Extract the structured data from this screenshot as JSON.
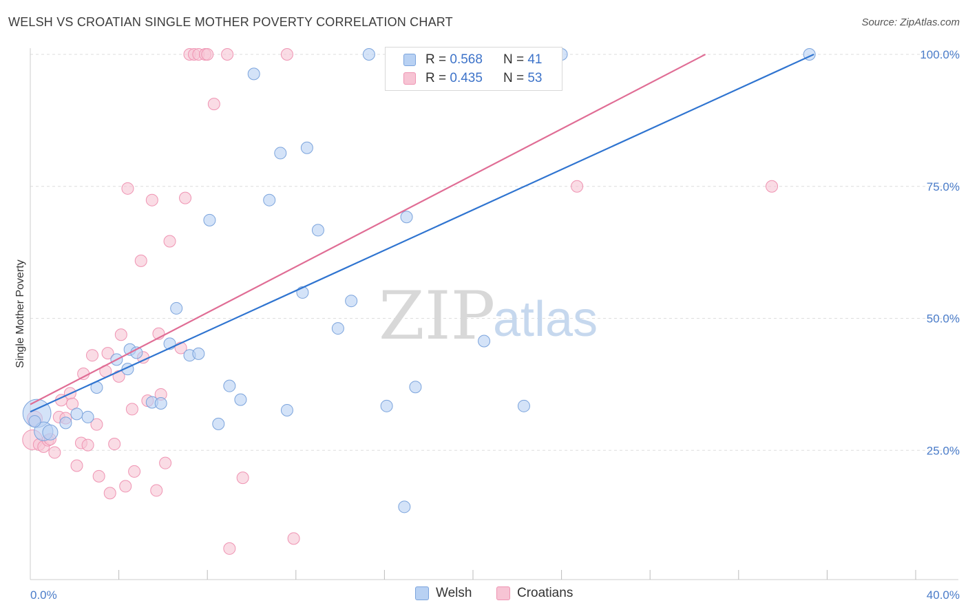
{
  "header": {
    "title": "WELSH VS CROATIAN SINGLE MOTHER POVERTY CORRELATION CHART",
    "source": "Source: ZipAtlas.com"
  },
  "watermark": {
    "zip": "ZIP",
    "atlas": "atlas"
  },
  "legend": {
    "rows": [
      {
        "r_label": "R =",
        "r_value": "0.568",
        "n_label": "N =",
        "n_value": "41"
      },
      {
        "r_label": "R =",
        "r_value": "0.435",
        "n_label": "N =",
        "n_value": "53"
      }
    ]
  },
  "bottom_legend": {
    "welsh": "Welsh",
    "croatians": "Croatians"
  },
  "colors": {
    "welsh_fill": "#b8d1f3",
    "welsh_stroke": "#7aa3dc",
    "welsh_line": "#2f74d0",
    "croatian_fill": "#f7c4d4",
    "croatian_stroke": "#ef93b2",
    "croatian_line": "#e06d95",
    "grid": "#dddddd",
    "tick_text": "#4a7cc9"
  },
  "chart_data": {
    "type": "scatter",
    "title": "WELSH VS CROATIAN SINGLE MOTHER POVERTY CORRELATION CHART",
    "xlabel": "",
    "ylabel": "Single Mother Poverty",
    "xlim": [
      0,
      40
    ],
    "ylim": [
      0,
      100
    ],
    "x_tick_labels": [
      "0.0%",
      "40.0%"
    ],
    "y_tick_labels": [
      "25.0%",
      "50.0%",
      "75.0%",
      "100.0%"
    ],
    "y_ticks": [
      25,
      50,
      75,
      100
    ],
    "grid": true,
    "legend_position": "top-center",
    "series": [
      {
        "name": "Welsh",
        "r": 0.568,
        "n": 41,
        "trend": {
          "x": [
            0.0,
            35.4
          ],
          "y": [
            32.3,
            100.0
          ]
        },
        "points": [
          [
            0.3,
            32.0,
            2.4
          ],
          [
            0.6,
            28.6,
            1.6
          ],
          [
            0.9,
            28.4,
            1.3
          ],
          [
            1.6,
            30.2,
            1
          ],
          [
            2.1,
            31.9,
            1
          ],
          [
            2.6,
            31.3,
            1
          ],
          [
            3.0,
            36.9,
            1
          ],
          [
            3.9,
            42.2,
            1
          ],
          [
            4.4,
            40.4,
            1
          ],
          [
            4.5,
            44.1,
            1
          ],
          [
            4.8,
            43.5,
            1
          ],
          [
            5.5,
            34.1,
            1
          ],
          [
            5.9,
            33.9,
            1
          ],
          [
            6.3,
            45.2,
            1
          ],
          [
            6.6,
            51.9,
            1
          ],
          [
            7.2,
            43.0,
            1
          ],
          [
            7.6,
            43.3,
            1
          ],
          [
            8.1,
            68.6,
            1
          ],
          [
            8.5,
            30.0,
            1
          ],
          [
            9.0,
            37.2,
            1
          ],
          [
            9.5,
            34.6,
            1
          ],
          [
            10.1,
            96.3,
            1
          ],
          [
            10.8,
            72.4,
            1
          ],
          [
            11.3,
            81.3,
            1
          ],
          [
            11.6,
            32.6,
            1
          ],
          [
            12.3,
            54.9,
            1
          ],
          [
            12.5,
            82.3,
            1
          ],
          [
            13.0,
            66.7,
            1
          ],
          [
            13.9,
            48.1,
            1
          ],
          [
            14.5,
            53.3,
            1
          ],
          [
            15.3,
            100.0,
            1
          ],
          [
            16.1,
            33.4,
            1
          ],
          [
            17.0,
            69.2,
            1
          ],
          [
            17.4,
            37.0,
            1
          ],
          [
            16.9,
            14.3,
            1
          ],
          [
            19.4,
            100.0,
            1
          ],
          [
            20.5,
            45.7,
            1
          ],
          [
            22.3,
            33.4,
            1
          ],
          [
            24.0,
            100.0,
            1
          ],
          [
            35.2,
            100.0,
            1
          ],
          [
            0.2,
            30.5,
            1
          ]
        ]
      },
      {
        "name": "Croatians",
        "r": 0.435,
        "n": 53,
        "trend": {
          "x": [
            0.0,
            30.5
          ],
          "y": [
            33.7,
            100.0
          ]
        },
        "points": [
          [
            0.1,
            27.0,
            1.7
          ],
          [
            0.2,
            31.0,
            1.3
          ],
          [
            0.4,
            26.1,
            1
          ],
          [
            0.6,
            25.7,
            1
          ],
          [
            0.8,
            26.9,
            1
          ],
          [
            1.1,
            24.6,
            1
          ],
          [
            1.3,
            31.3,
            1
          ],
          [
            1.4,
            34.5,
            1
          ],
          [
            1.6,
            31.1,
            1
          ],
          [
            1.8,
            35.8,
            1
          ],
          [
            1.9,
            33.8,
            1
          ],
          [
            2.1,
            22.1,
            1
          ],
          [
            2.3,
            26.4,
            1
          ],
          [
            2.4,
            39.5,
            1
          ],
          [
            2.6,
            26.0,
            1
          ],
          [
            2.8,
            43.0,
            1
          ],
          [
            3.0,
            29.9,
            1
          ],
          [
            3.1,
            20.1,
            1
          ],
          [
            3.4,
            40.0,
            1
          ],
          [
            3.5,
            43.4,
            1
          ],
          [
            3.6,
            16.9,
            1
          ],
          [
            3.8,
            26.2,
            1
          ],
          [
            4.0,
            39.0,
            1
          ],
          [
            4.1,
            46.9,
            1
          ],
          [
            4.3,
            18.2,
            1
          ],
          [
            4.4,
            74.6,
            1
          ],
          [
            4.6,
            32.8,
            1
          ],
          [
            4.7,
            21.0,
            1
          ],
          [
            5.0,
            60.9,
            1
          ],
          [
            5.1,
            42.6,
            1
          ],
          [
            5.3,
            34.4,
            1
          ],
          [
            5.5,
            72.4,
            1
          ],
          [
            5.7,
            17.4,
            1
          ],
          [
            5.8,
            47.1,
            1
          ],
          [
            5.9,
            35.6,
            1
          ],
          [
            6.1,
            22.6,
            1
          ],
          [
            6.3,
            64.6,
            1
          ],
          [
            6.8,
            44.4,
            1
          ],
          [
            7.0,
            72.8,
            1
          ],
          [
            7.2,
            100.0,
            1
          ],
          [
            7.4,
            100.0,
            1
          ],
          [
            7.6,
            100.0,
            1
          ],
          [
            7.9,
            100.0,
            1
          ],
          [
            8.0,
            100.0,
            1
          ],
          [
            8.3,
            90.6,
            1
          ],
          [
            9.0,
            6.4,
            1
          ],
          [
            8.9,
            100.0,
            1
          ],
          [
            9.6,
            19.8,
            1
          ],
          [
            11.6,
            100.0,
            1
          ],
          [
            11.9,
            8.3,
            1
          ],
          [
            24.7,
            75.0,
            1
          ],
          [
            33.5,
            75.0,
            1
          ],
          [
            0.9,
            27.1,
            1
          ]
        ]
      }
    ]
  }
}
